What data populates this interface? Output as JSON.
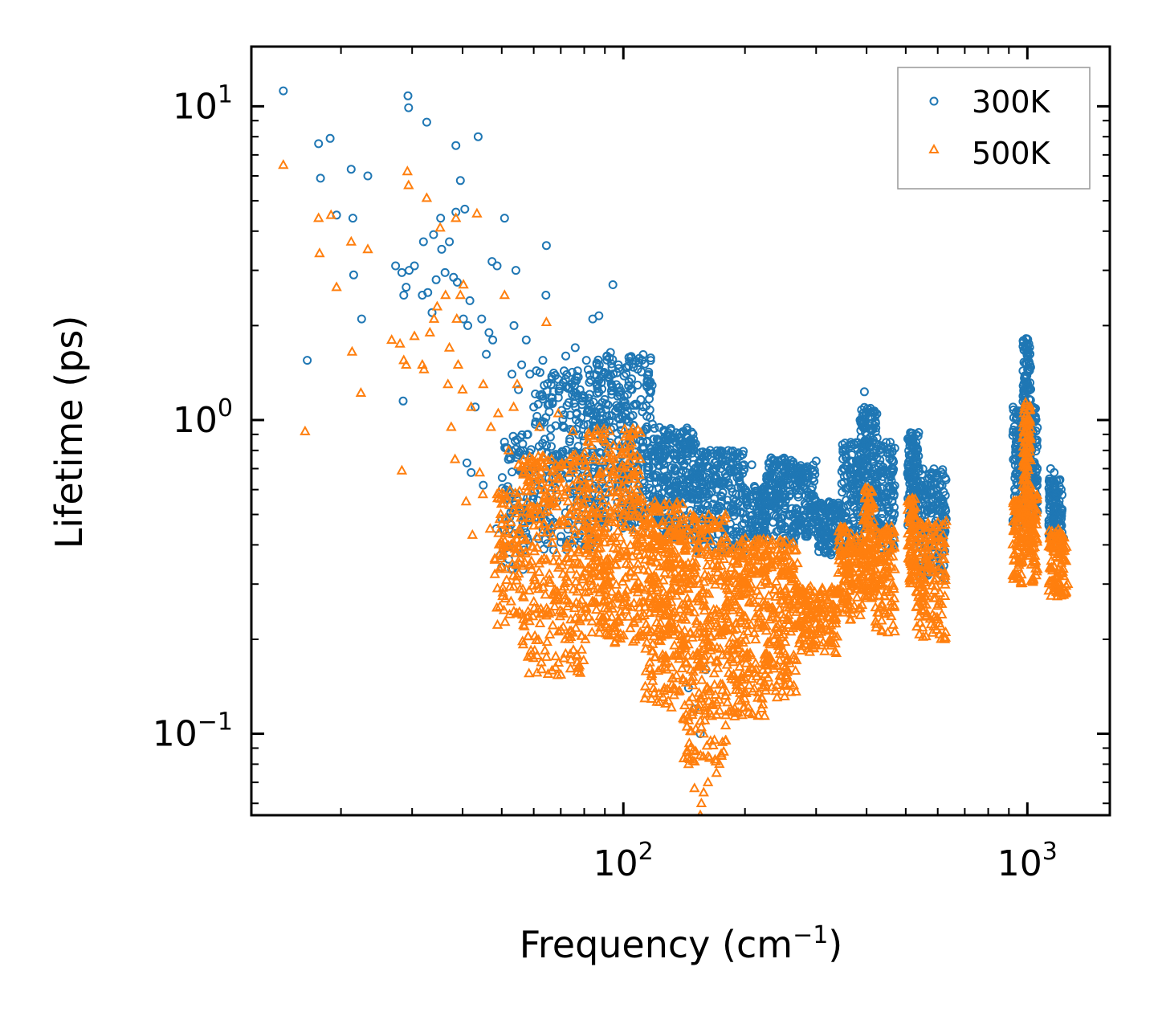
{
  "chart_data": {
    "type": "scatter",
    "xscale": "log",
    "yscale": "log",
    "xlabel": "Frequency (cm",
    "xlabel_sup": "−1",
    "xlabel_end": ")",
    "ylabel": "Lifetime (ps)",
    "xlim": [
      12,
      1600
    ],
    "ylim": [
      0.055,
      15.5
    ],
    "x_ticks": [
      {
        "value": 100,
        "base": "10",
        "exp": "2"
      },
      {
        "value": 1000,
        "base": "10",
        "exp": "3"
      }
    ],
    "y_ticks": [
      {
        "value": 0.1,
        "base": "10",
        "exp": "−1"
      },
      {
        "value": 1,
        "base": "10",
        "exp": "0"
      },
      {
        "value": 10,
        "base": "10",
        "exp": "1"
      }
    ],
    "legend": {
      "position": "top-right"
    },
    "series": [
      {
        "name": "300K",
        "color": "#1f77b4",
        "marker": "circle",
        "points": [
          [
            14.4,
            11.2
          ],
          [
            16.5,
            1.55
          ],
          [
            17.6,
            7.6
          ],
          [
            17.8,
            5.9
          ],
          [
            18.8,
            7.9
          ],
          [
            19.5,
            4.5
          ],
          [
            21.2,
            6.3
          ],
          [
            21.4,
            4.4
          ],
          [
            21.5,
            2.9
          ],
          [
            22.5,
            2.1
          ],
          [
            23.3,
            6.0
          ],
          [
            27.3,
            3.1
          ],
          [
            28.3,
            2.95
          ],
          [
            28.6,
            2.5
          ],
          [
            28.5,
            1.15
          ],
          [
            29.0,
            2.65
          ],
          [
            29.3,
            10.8
          ],
          [
            29.4,
            9.9
          ],
          [
            29.5,
            3.0
          ],
          [
            30.4,
            3.1
          ],
          [
            31.8,
            2.5
          ],
          [
            32.0,
            3.7
          ],
          [
            32.6,
            8.9
          ],
          [
            32.8,
            2.55
          ],
          [
            33.6,
            2.2
          ],
          [
            33.9,
            3.9
          ],
          [
            34.4,
            2.8
          ],
          [
            35.3,
            4.4
          ],
          [
            35.5,
            3.5
          ],
          [
            36.2,
            2.95
          ],
          [
            37.1,
            3.7
          ],
          [
            38.0,
            2.85
          ],
          [
            38.5,
            7.5
          ],
          [
            38.5,
            4.6
          ],
          [
            38.8,
            2.75
          ],
          [
            39.5,
            5.8
          ],
          [
            40.2,
            2.1
          ],
          [
            40.5,
            4.7
          ],
          [
            41.2,
            2.0
          ],
          [
            41.7,
            2.4
          ],
          [
            43.7,
            8.0
          ],
          [
            44.6,
            2.1
          ],
          [
            47.3,
            3.2
          ],
          [
            48.7,
            3.1
          ],
          [
            50.8,
            4.4
          ],
          [
            53.6,
            2.0
          ],
          [
            54.2,
            3.0
          ],
          [
            56.0,
            1.5
          ],
          [
            58.7,
            1.4
          ],
          [
            62.1,
            1.2
          ],
          [
            63.2,
            1.55
          ],
          [
            64.3,
            2.5
          ],
          [
            64.5,
            3.6
          ],
          [
            72.0,
            1.6
          ],
          [
            84.0,
            2.1
          ],
          [
            87.0,
            2.15
          ],
          [
            94.2,
            2.7
          ],
          [
            41.0,
            0.73
          ],
          [
            42.0,
            0.68
          ],
          [
            45.0,
            0.62
          ],
          [
            48.5,
            0.45
          ],
          [
            49.6,
            0.37
          ],
          [
            50.0,
            0.34
          ],
          [
            52.0,
            0.36
          ],
          [
            45.8,
            1.62
          ],
          [
            43.0,
            1.1
          ],
          [
            46.5,
            1.9
          ],
          [
            47.5,
            1.8
          ],
          [
            57.5,
            1.8
          ],
          [
            60.0,
            1.1
          ],
          [
            53.0,
            1.4
          ],
          [
            55.0,
            1.25
          ],
          [
            58.0,
            0.9
          ],
          [
            66.5,
            1.35
          ],
          [
            71.0,
            0.95
          ],
          [
            76.0,
            1.7
          ],
          [
            81.0,
            1.55
          ],
          [
            89.0,
            1.4
          ],
          [
            118.0,
            0.97
          ],
          [
            131.0,
            0.94
          ],
          [
            134.0,
            0.88
          ],
          [
            140.0,
            0.86
          ],
          [
            151.0,
            0.84
          ],
          [
            164.0,
            0.8
          ],
          [
            175.0,
            0.78
          ],
          [
            187.0,
            0.76
          ],
          [
            208.0,
            0.72
          ],
          [
            242.0,
            0.74
          ],
          [
            254.0,
            0.73
          ],
          [
            300.0,
            0.74
          ],
          [
            395.0,
            1.23
          ],
          [
            530.0,
            0.9
          ],
          [
            155.0,
            0.1
          ],
          [
            150.0,
            0.12
          ],
          [
            145.0,
            0.14
          ],
          [
            160.0,
            0.16
          ],
          [
            1142.0,
            0.7
          ],
          [
            1165.0,
            0.68
          ],
          [
            1210.0,
            0.5
          ],
          [
            1230.0,
            0.42
          ],
          [
            1200.0,
            0.46
          ],
          [
            1180.0,
            0.55
          ],
          [
            937.0,
            1.05
          ],
          [
            940.0,
            0.92
          ],
          [
            970.0,
            0.78
          ],
          [
            1025.0,
            0.8
          ],
          [
            1032.0,
            0.65
          ],
          [
            1010.0,
            0.7
          ]
        ],
        "bands": [
          {
            "x0": 50,
            "x1": 60,
            "ylo": 0.33,
            "yhi": 0.9,
            "n": 90
          },
          {
            "x0": 60,
            "x1": 85,
            "ylo": 0.38,
            "yhi": 1.45,
            "n": 260
          },
          {
            "x0": 85,
            "x1": 118,
            "ylo": 0.45,
            "yhi": 1.65,
            "n": 340
          },
          {
            "x0": 118,
            "x1": 150,
            "ylo": 0.42,
            "yhi": 0.95,
            "n": 260
          },
          {
            "x0": 150,
            "x1": 200,
            "ylo": 0.38,
            "yhi": 0.8,
            "n": 260
          },
          {
            "x0": 200,
            "x1": 225,
            "ylo": 0.4,
            "yhi": 0.62,
            "n": 90
          },
          {
            "x0": 225,
            "x1": 265,
            "ylo": 0.4,
            "yhi": 0.76,
            "n": 160
          },
          {
            "x0": 265,
            "x1": 300,
            "ylo": 0.42,
            "yhi": 0.72,
            "n": 120
          },
          {
            "x0": 300,
            "x1": 345,
            "ylo": 0.37,
            "yhi": 0.55,
            "n": 120
          },
          {
            "x0": 345,
            "x1": 385,
            "ylo": 0.37,
            "yhi": 0.85,
            "n": 120
          },
          {
            "x0": 385,
            "x1": 425,
            "ylo": 0.45,
            "yhi": 1.1,
            "n": 170
          },
          {
            "x0": 425,
            "x1": 470,
            "ylo": 0.37,
            "yhi": 0.85,
            "n": 120
          },
          {
            "x0": 505,
            "x1": 540,
            "ylo": 0.46,
            "yhi": 0.92,
            "n": 120
          },
          {
            "x0": 540,
            "x1": 630,
            "ylo": 0.31,
            "yhi": 0.7,
            "n": 160
          },
          {
            "x0": 920,
            "x1": 975,
            "ylo": 0.45,
            "yhi": 1.1,
            "n": 90
          },
          {
            "x0": 975,
            "x1": 1020,
            "ylo": 0.5,
            "yhi": 1.82,
            "n": 160
          },
          {
            "x0": 1020,
            "x1": 1060,
            "ylo": 0.48,
            "yhi": 1.1,
            "n": 70
          },
          {
            "x0": 1130,
            "x1": 1220,
            "ylo": 0.4,
            "yhi": 0.65,
            "n": 110
          }
        ]
      },
      {
        "name": "500K",
        "color": "#ff7f0e",
        "marker": "triangle",
        "points": [
          [
            14.4,
            6.5
          ],
          [
            16.3,
            0.92
          ],
          [
            17.6,
            4.4
          ],
          [
            17.7,
            3.4
          ],
          [
            18.9,
            4.5
          ],
          [
            19.5,
            2.65
          ],
          [
            21.2,
            3.7
          ],
          [
            21.3,
            1.65
          ],
          [
            22.4,
            1.22
          ],
          [
            23.3,
            3.5
          ],
          [
            26.7,
            1.8
          ],
          [
            28.0,
            1.75
          ],
          [
            28.3,
            0.69
          ],
          [
            28.6,
            1.55
          ],
          [
            29.0,
            1.5
          ],
          [
            29.2,
            6.2
          ],
          [
            29.4,
            5.6
          ],
          [
            30.4,
            1.85
          ],
          [
            31.8,
            1.5
          ],
          [
            32.1,
            1.45
          ],
          [
            32.6,
            5.1
          ],
          [
            33.2,
            1.9
          ],
          [
            34.0,
            2.1
          ],
          [
            34.6,
            2.3
          ],
          [
            35.2,
            4.1
          ],
          [
            36.3,
            2.5
          ],
          [
            36.8,
            1.3
          ],
          [
            37.1,
            1.7
          ],
          [
            38.3,
            0.75
          ],
          [
            38.5,
            4.4
          ],
          [
            38.7,
            2.1
          ],
          [
            39.0,
            1.5
          ],
          [
            39.5,
            2.5
          ],
          [
            40.2,
            2.7
          ],
          [
            40.8,
            0.55
          ],
          [
            42.3,
            0.43
          ],
          [
            43.4,
            4.55
          ],
          [
            44.1,
            0.68
          ],
          [
            44.9,
            0.58
          ],
          [
            46.8,
            0.45
          ],
          [
            48.7,
            0.58
          ],
          [
            50.8,
            2.5
          ],
          [
            53.5,
            1.1
          ],
          [
            54.6,
            1.3
          ],
          [
            58.7,
            0.53
          ],
          [
            64.5,
            2.05
          ],
          [
            37.5,
            0.95
          ],
          [
            40.0,
            1.25
          ],
          [
            42.0,
            1.1
          ],
          [
            45.0,
            1.3
          ],
          [
            47.0,
            0.95
          ],
          [
            49.0,
            1.05
          ],
          [
            52.0,
            0.8
          ],
          [
            55.0,
            0.72
          ],
          [
            62.0,
            0.95
          ],
          [
            69.0,
            1.05
          ],
          [
            75.0,
            0.92
          ],
          [
            82.0,
            0.85
          ],
          [
            155.0,
            0.055
          ],
          [
            156.0,
            0.06
          ],
          [
            158.0,
            0.065
          ],
          [
            150.0,
            0.067
          ],
          [
            162.0,
            0.07
          ],
          [
            170.0,
            0.075
          ],
          [
            145.0,
            0.08
          ],
          [
            175.0,
            0.085
          ],
          [
            1240.0,
            0.28
          ],
          [
            1260.0,
            0.3
          ],
          [
            625.0,
            0.2
          ],
          [
            610.0,
            0.22
          ],
          [
            920.0,
            0.32
          ],
          [
            930.0,
            0.36
          ]
        ],
        "bands": [
          {
            "x0": 48,
            "x1": 56,
            "ylo": 0.22,
            "yhi": 0.6,
            "n": 90
          },
          {
            "x0": 56,
            "x1": 80,
            "ylo": 0.15,
            "yhi": 0.78,
            "n": 320
          },
          {
            "x0": 80,
            "x1": 112,
            "ylo": 0.19,
            "yhi": 0.95,
            "n": 380
          },
          {
            "x0": 112,
            "x1": 140,
            "ylo": 0.12,
            "yhi": 0.55,
            "n": 300
          },
          {
            "x0": 140,
            "x1": 180,
            "ylo": 0.08,
            "yhi": 0.5,
            "n": 320
          },
          {
            "x0": 180,
            "x1": 225,
            "ylo": 0.11,
            "yhi": 0.42,
            "n": 260
          },
          {
            "x0": 225,
            "x1": 270,
            "ylo": 0.13,
            "yhi": 0.42,
            "n": 190
          },
          {
            "x0": 270,
            "x1": 340,
            "ylo": 0.18,
            "yhi": 0.3,
            "n": 170
          },
          {
            "x0": 340,
            "x1": 390,
            "ylo": 0.22,
            "yhi": 0.46,
            "n": 130
          },
          {
            "x0": 390,
            "x1": 420,
            "ylo": 0.27,
            "yhi": 0.61,
            "n": 110
          },
          {
            "x0": 420,
            "x1": 470,
            "ylo": 0.21,
            "yhi": 0.46,
            "n": 110
          },
          {
            "x0": 505,
            "x1": 530,
            "ylo": 0.3,
            "yhi": 0.57,
            "n": 80
          },
          {
            "x0": 530,
            "x1": 630,
            "ylo": 0.2,
            "yhi": 0.48,
            "n": 150
          },
          {
            "x0": 920,
            "x1": 975,
            "ylo": 0.3,
            "yhi": 0.56,
            "n": 80
          },
          {
            "x0": 975,
            "x1": 1020,
            "ylo": 0.36,
            "yhi": 1.15,
            "n": 140
          },
          {
            "x0": 1020,
            "x1": 1060,
            "ylo": 0.3,
            "yhi": 0.6,
            "n": 60
          },
          {
            "x0": 1130,
            "x1": 1250,
            "ylo": 0.27,
            "yhi": 0.45,
            "n": 110
          }
        ]
      }
    ]
  }
}
